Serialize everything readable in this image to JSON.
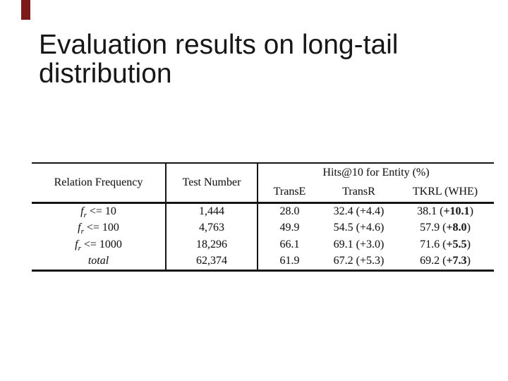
{
  "slide": {
    "title": "Evaluation results on long-tail distribution",
    "accent_color": "#7b1a1a",
    "background_color": "#ffffff",
    "title_color": "#171717"
  },
  "table": {
    "line_color": "#151515",
    "text_color": "#1b1b1b",
    "group_header": "Hits@10 for Entity (%)",
    "columns": [
      "Relation Frequency",
      "Test Number",
      "TransE",
      "TransR",
      "TKRL (WHE)"
    ],
    "rows": [
      {
        "cells": [
          [
            {
              "t": "f",
              "i": 1
            },
            {
              "t": "r",
              "i": 1,
              "s": 1
            },
            {
              "t": " <= 10"
            }
          ],
          [
            {
              "t": "1,444"
            }
          ],
          [
            {
              "t": "28.0"
            }
          ],
          [
            {
              "t": "32.4 (+4.4)"
            }
          ],
          [
            {
              "t": "38.1 ("
            },
            {
              "t": "+10.1",
              "b": 1
            },
            {
              "t": ")"
            }
          ]
        ]
      },
      {
        "cells": [
          [
            {
              "t": "f",
              "i": 1
            },
            {
              "t": "r",
              "i": 1,
              "s": 1
            },
            {
              "t": " <= 100"
            }
          ],
          [
            {
              "t": "4,763"
            }
          ],
          [
            {
              "t": "49.9"
            }
          ],
          [
            {
              "t": "54.5 (+4.6)"
            }
          ],
          [
            {
              "t": "57.9 ("
            },
            {
              "t": "+8.0",
              "b": 1
            },
            {
              "t": ")"
            }
          ]
        ]
      },
      {
        "cells": [
          [
            {
              "t": "f",
              "i": 1
            },
            {
              "t": "r",
              "i": 1,
              "s": 1
            },
            {
              "t": " <= 1000"
            }
          ],
          [
            {
              "t": "18,296"
            }
          ],
          [
            {
              "t": "66.1"
            }
          ],
          [
            {
              "t": "69.1 (+3.0)"
            }
          ],
          [
            {
              "t": "71.6 ("
            },
            {
              "t": "+5.5",
              "b": 1
            },
            {
              "t": ")"
            }
          ]
        ]
      },
      {
        "cells": [
          [
            {
              "t": "total",
              "i": 1
            }
          ],
          [
            {
              "t": "62,374"
            }
          ],
          [
            {
              "t": "61.9"
            }
          ],
          [
            {
              "t": "67.2 (+5.3)"
            }
          ],
          [
            {
              "t": "69.2 ("
            },
            {
              "t": "+7.3",
              "b": 1
            },
            {
              "t": ")"
            }
          ]
        ]
      }
    ]
  }
}
